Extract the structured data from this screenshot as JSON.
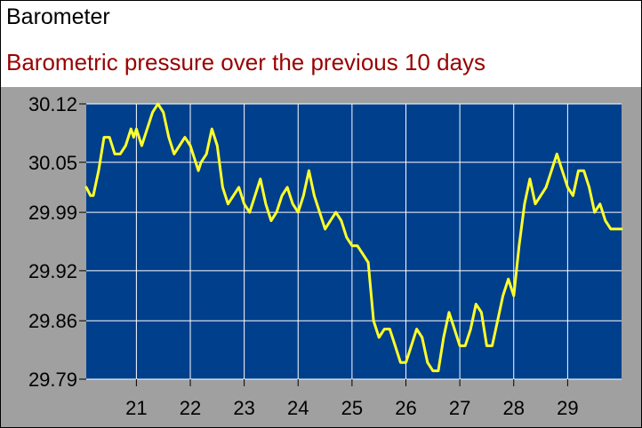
{
  "header": {
    "title": "Barometer",
    "subtitle": "Barometric pressure over the previous 10 days"
  },
  "colors": {
    "subtitle": "#990000",
    "panel": "#a0a0a0",
    "plot_bg": "#003f8c",
    "grid": "#ffffff",
    "series": "#ffff2a"
  },
  "chart_data": {
    "type": "line",
    "title": "Barometer",
    "subtitle": "Barometric pressure over the previous 10 days",
    "xlabel": "",
    "ylabel": "",
    "grid": true,
    "legend": "none",
    "xlim": [
      20.07,
      30.0
    ],
    "ylim": [
      29.79,
      30.12
    ],
    "x_ticks": [
      21,
      22,
      23,
      24,
      25,
      26,
      27,
      28,
      29
    ],
    "x_tick_labels": [
      "21",
      "22",
      "23",
      "24",
      "25",
      "26",
      "27",
      "28",
      "29"
    ],
    "y_ticks": [
      29.79,
      29.86,
      29.92,
      29.99,
      30.05,
      30.12
    ],
    "y_tick_labels": [
      "29.79",
      "29.86",
      "29.92",
      "29.99",
      "30.05",
      "30.12"
    ],
    "series": [
      {
        "x": [
          20.07,
          20.15,
          20.2,
          20.3,
          20.4,
          20.5,
          20.6,
          20.7,
          20.8,
          20.9,
          20.95,
          21.0,
          21.1,
          21.2,
          21.3,
          21.4,
          21.5,
          21.6,
          21.7,
          21.8,
          21.9,
          22.0,
          22.1,
          22.15,
          22.2,
          22.3,
          22.4,
          22.5,
          22.6,
          22.7,
          22.8,
          22.9,
          23.0,
          23.1,
          23.2,
          23.3,
          23.4,
          23.5,
          23.6,
          23.7,
          23.8,
          23.9,
          24.0,
          24.1,
          24.2,
          24.3,
          24.4,
          24.5,
          24.6,
          24.7,
          24.8,
          24.9,
          25.0,
          25.1,
          25.2,
          25.3,
          25.4,
          25.5,
          25.6,
          25.7,
          25.8,
          25.9,
          26.0,
          26.1,
          26.2,
          26.3,
          26.4,
          26.5,
          26.6,
          26.7,
          26.8,
          26.9,
          27.0,
          27.1,
          27.2,
          27.3,
          27.4,
          27.5,
          27.6,
          27.7,
          27.8,
          27.9,
          28.0,
          28.1,
          28.2,
          28.3,
          28.4,
          28.5,
          28.6,
          28.7,
          28.8,
          28.9,
          29.0,
          29.1,
          29.2,
          29.3,
          29.4,
          29.5,
          29.6,
          29.7,
          29.8,
          29.9,
          30.0
        ],
        "y": [
          30.02,
          30.01,
          30.01,
          30.04,
          30.08,
          30.08,
          30.06,
          30.06,
          30.07,
          30.09,
          30.08,
          30.09,
          30.07,
          30.09,
          30.11,
          30.12,
          30.11,
          30.08,
          30.06,
          30.07,
          30.08,
          30.07,
          30.05,
          30.04,
          30.05,
          30.06,
          30.09,
          30.07,
          30.02,
          30.0,
          30.01,
          30.02,
          30.0,
          29.99,
          30.01,
          30.03,
          30.0,
          29.98,
          29.99,
          30.01,
          30.02,
          30.0,
          29.99,
          30.01,
          30.04,
          30.01,
          29.99,
          29.97,
          29.98,
          29.99,
          29.98,
          29.96,
          29.95,
          29.95,
          29.94,
          29.93,
          29.86,
          29.84,
          29.85,
          29.85,
          29.83,
          29.81,
          29.81,
          29.83,
          29.85,
          29.84,
          29.81,
          29.8,
          29.8,
          29.84,
          29.87,
          29.85,
          29.83,
          29.83,
          29.85,
          29.88,
          29.87,
          29.83,
          29.83,
          29.86,
          29.89,
          29.91,
          29.89,
          29.95,
          30.0,
          30.03,
          30.0,
          30.01,
          30.02,
          30.04,
          30.06,
          30.04,
          30.02,
          30.01,
          30.04,
          30.04,
          30.02,
          29.99,
          30.0,
          29.98,
          29.97,
          29.97,
          29.97
        ]
      }
    ]
  }
}
